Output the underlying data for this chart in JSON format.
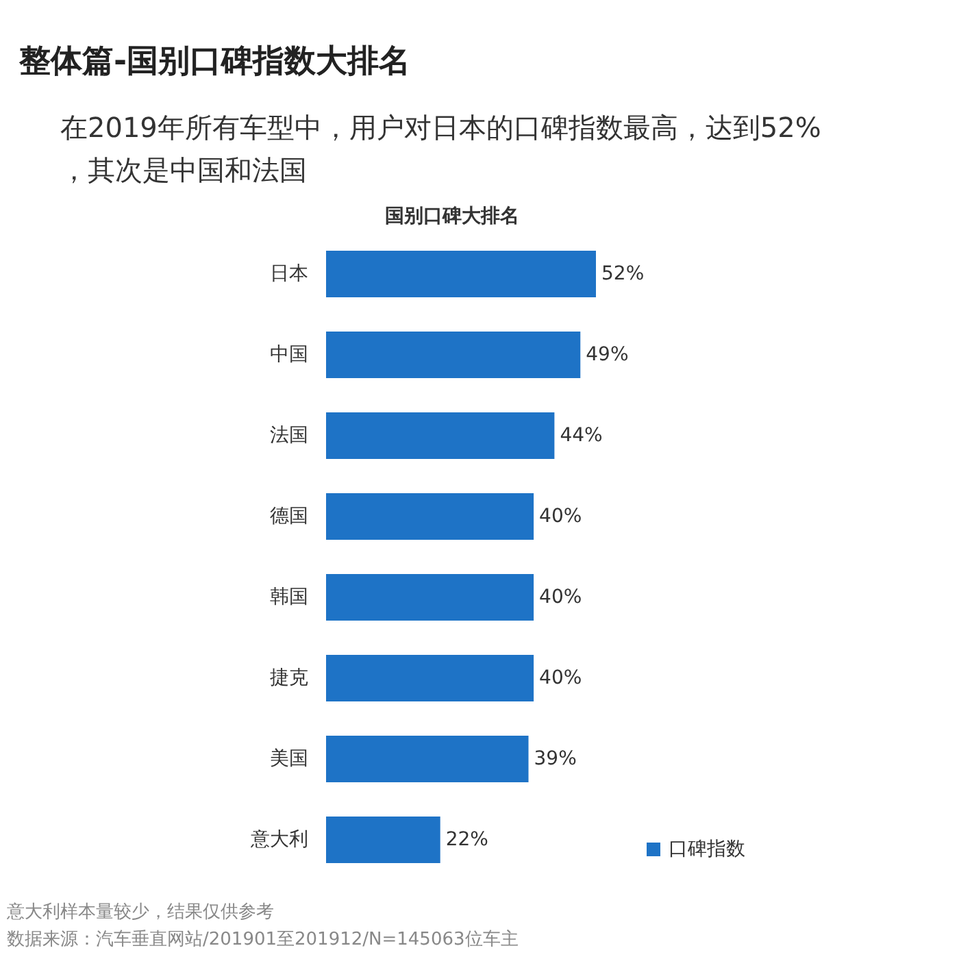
{
  "chart_data": {
    "type": "bar",
    "orientation": "horizontal",
    "title": "整体篇-国别口碑指数大排名",
    "subtitle": "在2019年所有车型中，用户对日本的口碑指数最高，达到52%，其次是中国和法国",
    "categories": [
      "日本",
      "中国",
      "法国",
      "德国",
      "韩国",
      "捷克",
      "美国",
      "意大利"
    ],
    "series": [
      {
        "name": "口碑指数",
        "color": "#1e73c6",
        "values": [
          52,
          49,
          44,
          40,
          40,
          40,
          39,
          22
        ],
        "value_labels": [
          "52%",
          "49%",
          "44%",
          "40%",
          "40%",
          "40%",
          "39%",
          "22%"
        ]
      }
    ],
    "legend": "bottom right",
    "annotations": [
      "国别口碑大排名",
      "意大利样本量较少，结果仅供参考",
      "数据来源：汽车垂直网站/201901至201912/N=145063位车主"
    ]
  }
}
